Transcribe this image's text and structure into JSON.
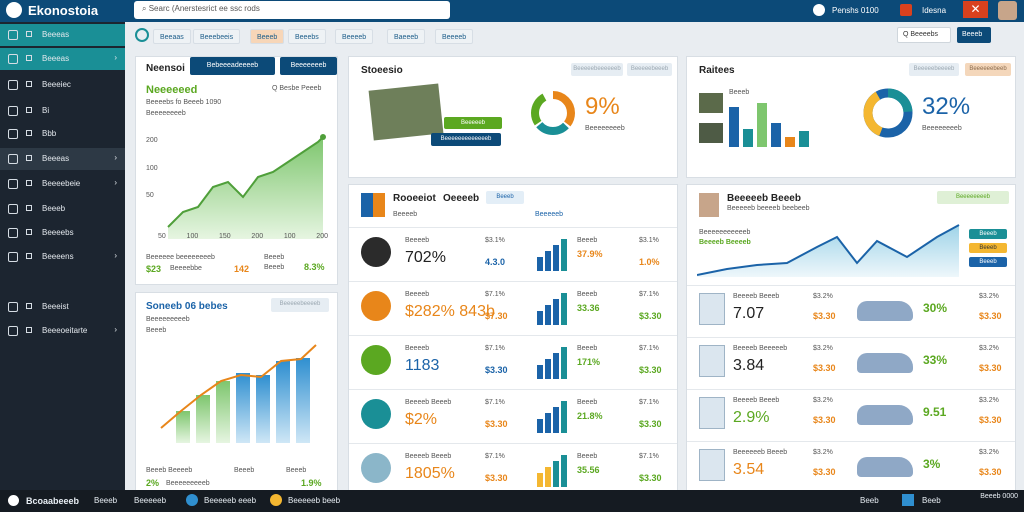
{
  "app": {
    "title": "Ekonostoia",
    "search": "Searc (Anerstesrict ee ssc rods",
    "top_right_1": "Penshs 0100",
    "top_right_2": "Idesna",
    "close": "✕"
  },
  "sidebar": {
    "items": [
      "Beeeas",
      "Beeeas",
      "Beeeiec",
      "Bi",
      "Bbb",
      "Beeeas",
      "Beeeebeie",
      "Beeeb",
      "Beeeebs",
      "Beeeens",
      "Beeeist",
      "Beeeoeitarte"
    ]
  },
  "tabs": [
    "Beeaas",
    "Beeebeeis",
    "Beeeb",
    "Beeebs",
    "Beeeeb",
    "Baeeeb",
    "Beeeeb"
  ],
  "toolbar": {
    "search": "Q Beeeebs",
    "button": "Beeeb"
  },
  "card1": {
    "title": "Neensoi",
    "btn1": "Bebeeeadeeeeb",
    "btn2": "Beeeeeeeb",
    "subtitle": "Neeeeeed",
    "legend": "Q Besbe Peeeb",
    "line1": "Beeeebs fo Beeeb 1090",
    "line2": "Beeeeeeeeb",
    "ylabels": [
      "200",
      "100",
      "50"
    ],
    "xlabels": [
      "50",
      "100",
      "150",
      "200",
      "100",
      "200"
    ],
    "foot1": "Beeeeee beeeeeeeeb",
    "foot2": "Beeeb",
    "foot3": "Beeeb",
    "v1": "$23",
    "v1b": "Beeeebbe",
    "v2": "142",
    "v2b": "Beeeb",
    "v3": "8.3%"
  },
  "card2": {
    "title": "Soneeb 06 bebes",
    "btn": "Beeeeebeeeeb",
    "line1": "Beeeeeeeeeb",
    "line2": "Beeeb",
    "foot1": "Beeeb Beeeeb",
    "foot2": "Beeeb",
    "foot3": "Beeeb",
    "v1": "2%",
    "v1b": "Beeeeeeeeeb",
    "v2": "1.9%"
  },
  "card3": {
    "title": "Stoeesio",
    "btn1": "Beeeeebeeeeeeb",
    "btn2": "Beeeeebeeeb",
    "pct": "9%",
    "sub": "Beeeeeeeeb",
    "lab1": "Beeeeeb",
    "lab2": "Beeeeeeeeeeeeeb"
  },
  "card4": {
    "title": "Raitees",
    "btn1": "Beeeeebeeeeb",
    "btn2": "Beeeeeebeeb",
    "pct": "32%",
    "sub": "Beeeeeeeeb",
    "legend": [
      "Beeeb",
      "Beeeb",
      "Beeeb",
      "Beeeb"
    ]
  },
  "card5": {
    "title": "Rooeeiot",
    "title2": "Oeeeeb",
    "btn": "Beeeb",
    "sub1": "Beeeeb",
    "sub2": "Beeeeeb",
    "rows": [
      {
        "name": "Beeeeb",
        "val": "702%",
        "small": "$3.1%",
        "v1": "4.3.0",
        "v1c": "blue",
        "label": "Beeeb",
        "pct": "37.9%",
        "right": "1.0%",
        "rc": "orange"
      },
      {
        "name": "Beeeeb",
        "val": "$282% 843b",
        "small": "$7.1%",
        "v1": "$7.30",
        "v1c": "orange",
        "label": "Beeeb",
        "pct": "33.36",
        "right": "$3.30",
        "rc": "green"
      },
      {
        "name": "Beeeeb",
        "val": "1183",
        "small": "$7.1%",
        "v1": "$3.30",
        "v1c": "blue",
        "label": "Beeeb",
        "pct": "171%",
        "right": "$3.30",
        "rc": "green"
      },
      {
        "name": "Beeeeb Beeeb",
        "val": "$2%",
        "small": "$7.1%",
        "v1": "$3.30",
        "v1c": "orange",
        "label": "Beeeb",
        "pct": "21.8%",
        "right": "$3.30",
        "rc": "green"
      },
      {
        "name": "Beeeeb Beeeb",
        "val": "1805%",
        "small": "$7.1%",
        "v1": "$3.30",
        "v1c": "orange",
        "label": "Beeeb",
        "pct": "35.56",
        "right": "$3.30",
        "rc": "green"
      }
    ]
  },
  "card6": {
    "title": "Beeeeeb Beeeb",
    "sub": "Beeeeeb beeeeb beebeeb",
    "btn": "Beeeeeeeeb",
    "sub2": "Beeeeeeeeeeeb",
    "sub3": "Beeeeb Beeeeb",
    "legend": [
      "Beeeb",
      "Beeeb",
      "Beeeb"
    ],
    "rows": [
      {
        "name": "Beeeeb Beeeb",
        "val": "7.07",
        "v2": "$3.30",
        "small": "$3.2%",
        "pct": "30%",
        "right": "$3.30",
        "small2": "$3.2%"
      },
      {
        "name": "Beeeeb Beeeeeb",
        "val": "3.84",
        "v2": "$3.30",
        "small": "$3.2%",
        "pct": "33%",
        "right": "$3.30",
        "small2": "$3.2%"
      },
      {
        "name": "Beeeeb Beeeb",
        "val": "2.9%",
        "v2": "$3.30",
        "small": "$3.2%",
        "pct": "9.51",
        "right": "$3.30",
        "small2": "$3.2%"
      },
      {
        "name": "Beeeeeeb Beeeb",
        "val": "3.54",
        "v2": "$3.30",
        "small": "$3.2%",
        "pct": "3%",
        "right": "$3.30",
        "small2": "$3.2%"
      }
    ]
  },
  "taskbar": {
    "items": [
      "Bcoaabeeeb",
      "Beeeb",
      "Beeeeeb",
      "Beeeeeb eeeb",
      "Beeeeeb beeb"
    ],
    "right": [
      "Beeb",
      "Beeb",
      "Beeeb 0000"
    ]
  },
  "colors": {
    "brand": "#0c4a78",
    "teal": "#1a8f96",
    "green": "#5ba821",
    "orange": "#e8861a",
    "blue": "#1b63a8"
  }
}
